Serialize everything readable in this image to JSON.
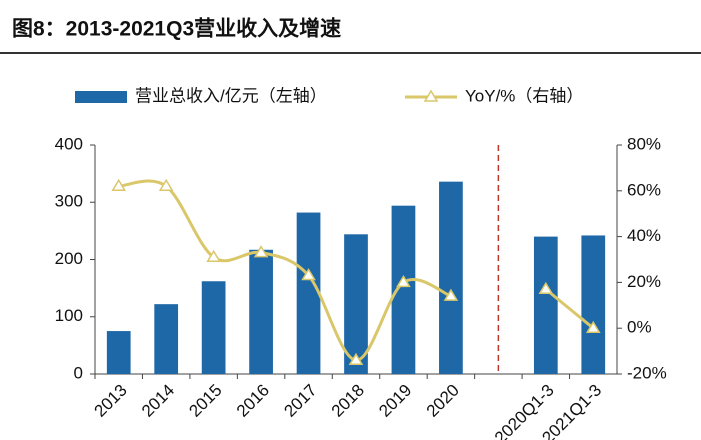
{
  "chart_data": {
    "type": "combo",
    "title": "图8：2013-2021Q3营业收入及增速",
    "categories": [
      "2013",
      "2014",
      "2015",
      "2016",
      "2017",
      "2018",
      "2019",
      "2020",
      null,
      "2020Q1-3",
      "2021Q1-3"
    ],
    "series": [
      {
        "name": "营业总收入/亿元（左轴）",
        "type": "bar",
        "color": "#1f68a8",
        "values": [
          75,
          122,
          162,
          217,
          282,
          244,
          294,
          336,
          null,
          240,
          242
        ]
      },
      {
        "name": "YoY/%（右轴）",
        "type": "line",
        "axis": "y2",
        "color": "#d9c76a",
        "values": [
          62,
          62,
          31,
          33,
          23,
          -14,
          20,
          14,
          null,
          17,
          0
        ]
      }
    ],
    "ylim": [
      0,
      400
    ],
    "yticks": [
      0,
      100,
      200,
      300,
      400
    ],
    "y2lim": [
      -20,
      80
    ],
    "y2ticks": [
      {
        "value": -20,
        "label": "-20%"
      },
      {
        "value": 0,
        "label": "0%"
      },
      {
        "value": 20,
        "label": "20%"
      },
      {
        "value": 40,
        "label": "40%"
      },
      {
        "value": 60,
        "label": "60%"
      },
      {
        "value": 80,
        "label": "80%"
      }
    ]
  }
}
